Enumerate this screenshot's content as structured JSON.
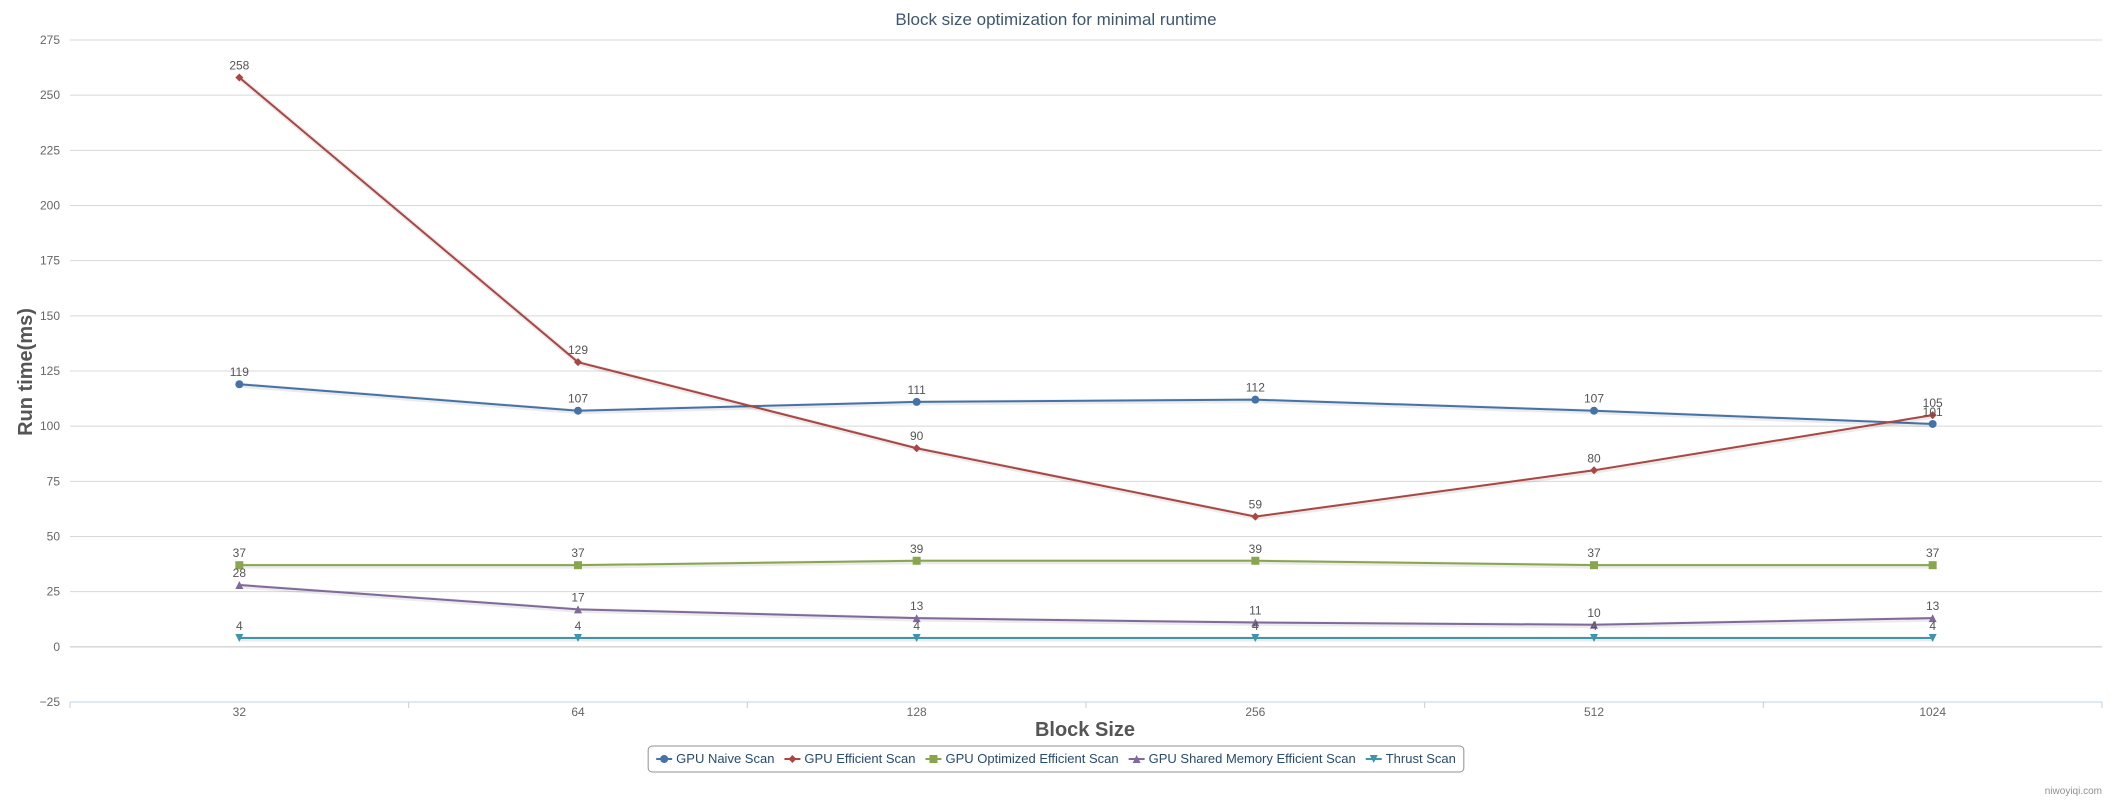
{
  "chart_data": {
    "type": "line",
    "title": "Block size optimization for minimal runtime",
    "xlabel": "Block Size",
    "ylabel": "Run time(ms)",
    "categories": [
      "32",
      "64",
      "128",
      "256",
      "512",
      "1024"
    ],
    "ylim": [
      -25,
      275
    ],
    "yticks": [
      -25,
      0,
      25,
      50,
      75,
      100,
      125,
      150,
      175,
      200,
      225,
      250,
      275
    ],
    "grid": true,
    "legend_position": "bottom-center",
    "series": [
      {
        "name": "GPU Naive Scan",
        "values": [
          119,
          107,
          111,
          112,
          107,
          101
        ],
        "color": "#4572a7",
        "marker": "circle"
      },
      {
        "name": "GPU Efficient Scan",
        "values": [
          258,
          129,
          90,
          59,
          80,
          105
        ],
        "color": "#aa4643",
        "marker": "diamond"
      },
      {
        "name": "GPU Optimized Efficient Scan",
        "values": [
          37,
          37,
          39,
          39,
          37,
          37
        ],
        "color": "#89a54e",
        "marker": "square"
      },
      {
        "name": "GPU Shared Memory Efficient Scan",
        "values": [
          28,
          17,
          13,
          11,
          10,
          13
        ],
        "color": "#80699b",
        "marker": "triangle"
      },
      {
        "name": "Thrust Scan",
        "values": [
          4,
          4,
          4,
          4,
          4,
          4
        ],
        "color": "#3d96ae",
        "marker": "triangle-down"
      }
    ]
  },
  "credit": "niwoyiqi.com"
}
